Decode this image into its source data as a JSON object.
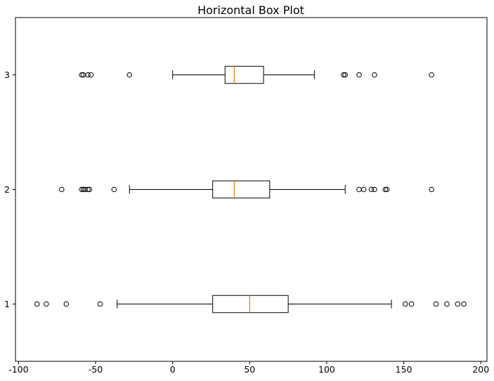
{
  "chart_data": {
    "type": "boxplot",
    "orientation": "horizontal",
    "title": "Horizontal Box Plot",
    "xlabel": "",
    "ylabel": "",
    "xlim": [
      -102,
      204
    ],
    "ylim": [
      0.5,
      3.5
    ],
    "xticks": [
      -100,
      -50,
      0,
      50,
      100,
      150,
      200
    ],
    "yticks": [
      1,
      2,
      3
    ],
    "grid": false,
    "series": [
      {
        "category": "1",
        "whisker_low": -36,
        "q1": 26,
        "median": 50,
        "q3": 75,
        "whisker_high": 142,
        "fliers": [
          -88,
          -82,
          -69,
          -47,
          151,
          155,
          171,
          178,
          185,
          189
        ]
      },
      {
        "category": "2",
        "whisker_low": -28,
        "q1": 26,
        "median": 40,
        "q3": 63,
        "whisker_high": 112,
        "fliers": [
          -72,
          -59,
          -58,
          -57,
          -55,
          -54,
          -38,
          121,
          124,
          129,
          131,
          138,
          139,
          168
        ]
      },
      {
        "category": "3",
        "whisker_low": 0,
        "q1": 34,
        "median": 40,
        "q3": 59,
        "whisker_high": 92,
        "fliers": [
          -59,
          -58,
          -55,
          -53,
          -28,
          111,
          112,
          121,
          131,
          168
        ]
      }
    ]
  }
}
